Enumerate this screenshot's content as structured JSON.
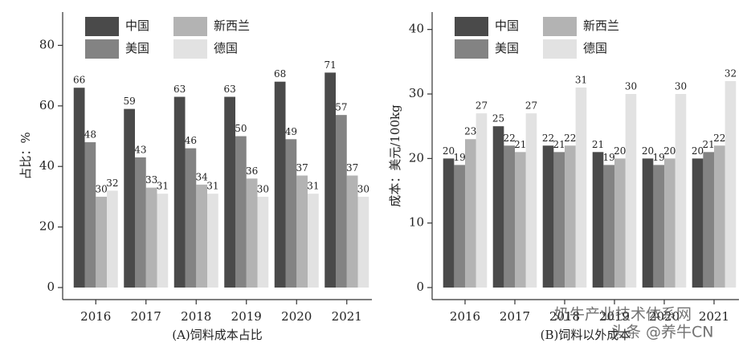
{
  "chart_data": [
    {
      "type": "bar",
      "x_label": "(A)饲料成本占比",
      "y_label": "占比：%",
      "categories": [
        "2016",
        "2017",
        "2018",
        "2019",
        "2020",
        "2021"
      ],
      "series": [
        {
          "name": "中国",
          "color": "#4a4a4a",
          "values": [
            66,
            59,
            63,
            63,
            68,
            71
          ]
        },
        {
          "name": "美国",
          "color": "#838383",
          "values": [
            48,
            43,
            46,
            50,
            49,
            57
          ]
        },
        {
          "name": "新西兰",
          "color": "#b3b3b3",
          "values": [
            30,
            33,
            34,
            36,
            37,
            37
          ]
        },
        {
          "name": "德国",
          "color": "#e2e2e2",
          "values": [
            32,
            31,
            31,
            30,
            31,
            30
          ]
        }
      ],
      "ylim": [
        0,
        91
      ],
      "yticks": [
        0,
        20,
        40,
        60,
        80
      ],
      "legend": "top"
    },
    {
      "type": "bar",
      "x_label": "(B)饲料以外成本",
      "y_label": "成本：美元/100kg",
      "categories": [
        "2016",
        "2017",
        "2018",
        "2019",
        "2020",
        "2021"
      ],
      "series": [
        {
          "name": "中国",
          "color": "#4a4a4a",
          "values": [
            20,
            25,
            22,
            21,
            20,
            20
          ]
        },
        {
          "name": "美国",
          "color": "#838383",
          "values": [
            19,
            22,
            21,
            19,
            19,
            21
          ]
        },
        {
          "name": "新西兰",
          "color": "#b3b3b3",
          "values": [
            23,
            21,
            22,
            20,
            20,
            22
          ]
        },
        {
          "name": "德国",
          "color": "#e2e2e2",
          "values": [
            27,
            27,
            31,
            30,
            30,
            32
          ]
        }
      ],
      "ylim": [
        0,
        42.7
      ],
      "yticks": [
        0,
        10,
        20,
        30,
        40
      ],
      "legend": "top"
    }
  ],
  "watermark": [
    "奶牛产业技术体系网",
    "头条 @养牛CN"
  ]
}
